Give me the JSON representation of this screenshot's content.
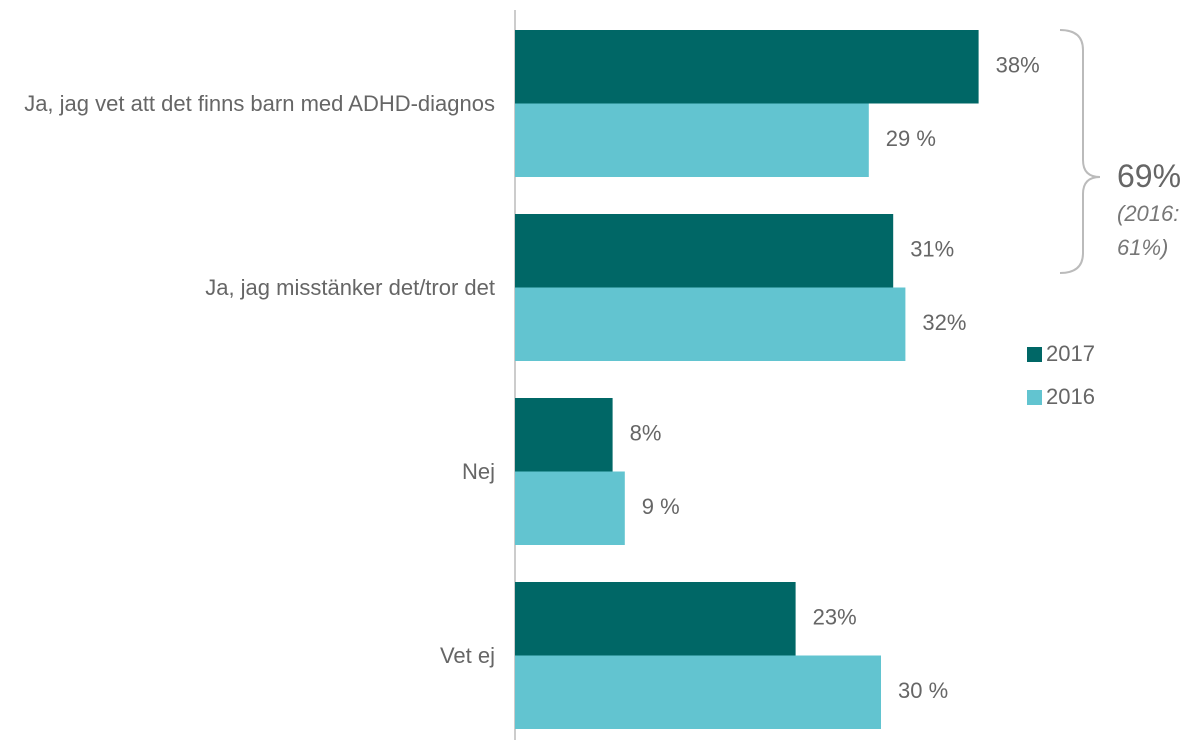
{
  "chart_data": {
    "type": "hbar",
    "categories": [
      "Ja, jag vet att det finns barn med ADHD-diagnos",
      "Ja, jag misstänker det/tror det",
      "Nej",
      "Vet ej"
    ],
    "series": [
      {
        "name": "2017",
        "color": "#006766",
        "values": [
          38,
          31,
          8,
          23
        ],
        "value_labels": [
          "38%",
          "31%",
          "8%",
          "23%"
        ]
      },
      {
        "name": "2016",
        "color": "#62c4d0",
        "values": [
          29,
          32,
          9,
          30
        ],
        "value_labels": [
          "29 %",
          "32%",
          "9 %",
          "30 %"
        ]
      }
    ],
    "xlim": [
      0,
      50
    ],
    "annotation": {
      "value": "69%",
      "note": "(2016: 61%)"
    }
  }
}
